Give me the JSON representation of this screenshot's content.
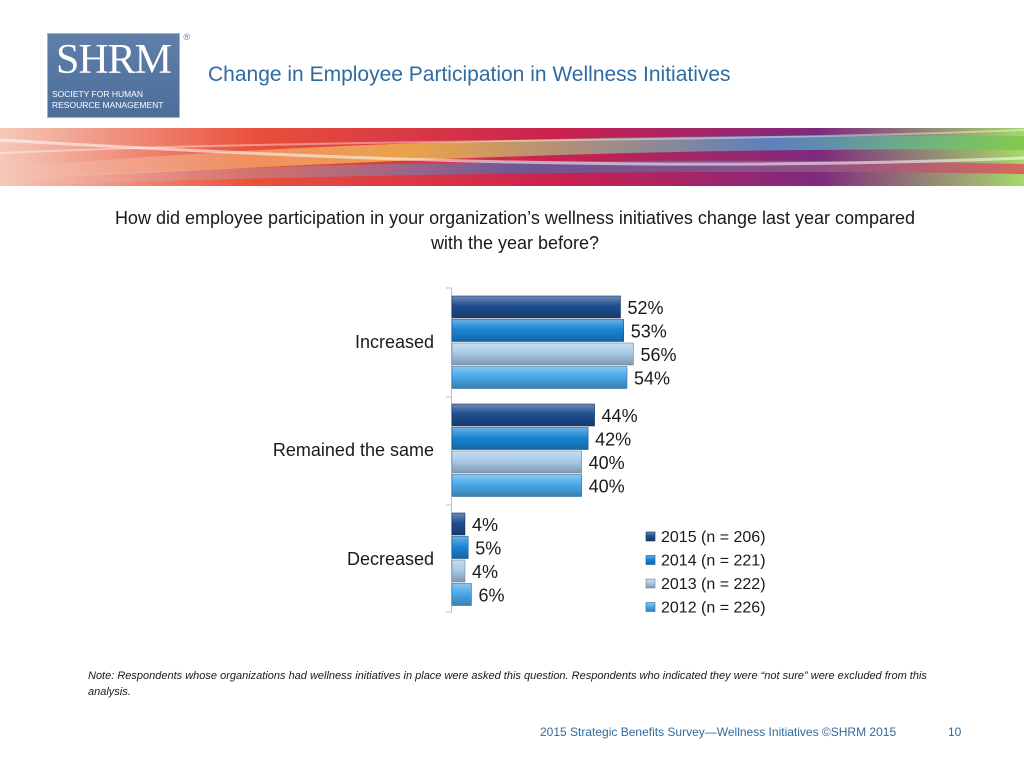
{
  "header": {
    "logo_word": "SHRM",
    "logo_registered": "®",
    "logo_subtitle": "Society for Human Resource Management",
    "title": "Change in Employee Participation in Wellness Initiatives"
  },
  "question": "How did employee participation in your organization’s wellness initiatives change last year compared with the year before?",
  "chart_data": {
    "type": "bar",
    "orientation": "horizontal",
    "categories": [
      "Increased",
      "Remained the same",
      "Decreased"
    ],
    "series": [
      {
        "name": "2015 (n = 206)",
        "values": [
          52,
          44,
          4
        ],
        "labels": [
          "52%",
          "44%",
          "4%"
        ],
        "color": "#1f4e91"
      },
      {
        "name": "2014 (n = 221)",
        "values": [
          53,
          42,
          5
        ],
        "labels": [
          "53%",
          "42%",
          "5%"
        ],
        "color": "#1b86d6"
      },
      {
        "name": "2013 (n = 222)",
        "values": [
          56,
          40,
          4
        ],
        "labels": [
          "56%",
          "40%",
          "4%"
        ],
        "color": "#a9cbe8"
      },
      {
        "name": "2012 (n = 226)",
        "values": [
          54,
          40,
          6
        ],
        "labels": [
          "54%",
          "40%",
          "6%"
        ],
        "color": "#4aa9ea"
      }
    ],
    "unit": "%",
    "xlim": [
      0,
      100
    ],
    "grid": false,
    "legend_position": "bottom-right"
  },
  "note": "Note: Respondents whose organizations had wellness initiatives in place were asked this question. Respondents who indicated they were “not sure” were excluded from this analysis.",
  "footer": {
    "source": "2015 Strategic Benefits Survey—Wellness Initiatives ©SHRM 2015",
    "page": "10"
  }
}
